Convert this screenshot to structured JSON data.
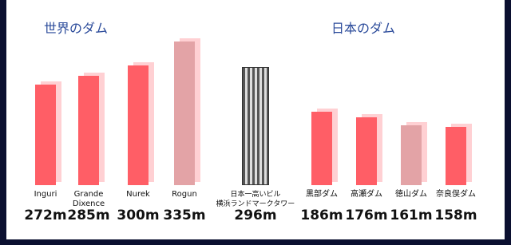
{
  "chart_data": [
    {
      "type": "bar",
      "title": "世界のダム",
      "categories": [
        "Inguri",
        "Grande\nDixence",
        "Nurek",
        "Rogun"
      ],
      "values": [
        272,
        285,
        300,
        335
      ],
      "value_labels": [
        "272m",
        "285m",
        "300m",
        "335m"
      ],
      "colors": [
        "#ff5e66",
        "#ff5e66",
        "#ff5e66",
        "#e3a3a6"
      ],
      "ylim": [
        125,
        335
      ]
    },
    {
      "type": "building",
      "categories": [
        "日本一高いビル\n横浜ランドマークタワー"
      ],
      "values": [
        296
      ],
      "value_labels": [
        "296m"
      ],
      "colors": [
        "#9a9a9a"
      ],
      "ylim": [
        0,
        360
      ]
    },
    {
      "type": "bar",
      "title": "日本のダム",
      "categories": [
        "黒部ダム",
        "高瀬ダム",
        "徳山ダム",
        "奈良俣ダム"
      ],
      "values": [
        186,
        176,
        161,
        158
      ],
      "value_labels": [
        "186m",
        "176m",
        "161m",
        "158m"
      ],
      "colors": [
        "#ff5e66",
        "#ff5e66",
        "#e3a3a6",
        "#ff5e66"
      ],
      "ylim": [
        51,
        316
      ]
    }
  ]
}
